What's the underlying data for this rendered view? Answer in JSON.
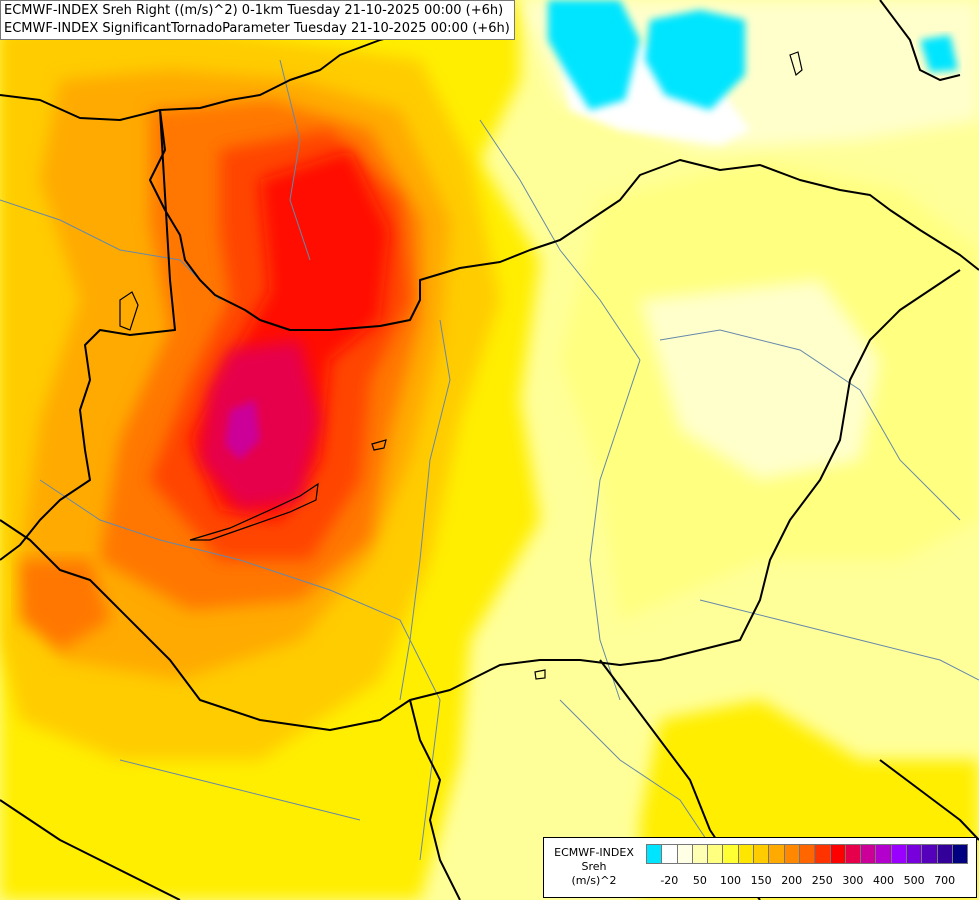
{
  "title": {
    "line1": "ECMWF-INDEX Sreh Right ((m/s)^2) 0-1km Tuesday 21-10-2025 00:00 (+6h)",
    "line2": "ECMWF-INDEX SignificantTornadoParameter Tuesday 21-10-2025 00:00 (+6h)"
  },
  "legend": {
    "label_line1": "ECMWF-INDEX",
    "label_line2": "Sreh",
    "label_line3": "(m/s)^2",
    "colors": [
      "#00e5ff",
      "#ffffff",
      "#ffffe6",
      "#ffffb3",
      "#ffff80",
      "#ffff33",
      "#ffe600",
      "#ffcc00",
      "#ffaa00",
      "#ff8800",
      "#ff6600",
      "#ff3300",
      "#ff0000",
      "#e6004c",
      "#cc0099",
      "#b300cc",
      "#9900ff",
      "#7700dd",
      "#5500bb",
      "#330099",
      "#000080"
    ],
    "ticks": [
      "-20",
      "50",
      "100",
      "150",
      "200",
      "250",
      "300",
      "400",
      "500",
      "700"
    ]
  },
  "map": {
    "background_color": "#ffff99",
    "field_colors": {
      "cyan": "#00e5ff",
      "white": "#ffffff",
      "pale": "#ffffcc",
      "light_yellow": "#ffff80",
      "yellow": "#ffee00",
      "orange_yellow": "#ffcc00",
      "orange": "#ffaa00",
      "dark_orange": "#ff7700",
      "red_orange": "#ff4400",
      "red": "#ff1100",
      "crimson": "#e6004c",
      "magenta": "#cc0099"
    },
    "border_color": "#000000",
    "river_color": "#6688aa"
  }
}
